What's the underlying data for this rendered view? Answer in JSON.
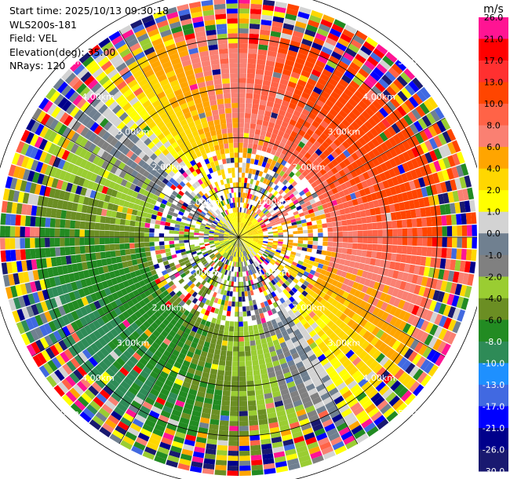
{
  "info": {
    "start_time": "Start time: 2025/10/13 09:30:18",
    "instrument": "WLS200s-181",
    "field": "Field: VEL",
    "elevation": "Elevation(deg): 35.00",
    "nrays": "NRays: 120"
  },
  "colorbar": {
    "unit": "m/s",
    "ticks": [
      "26.0",
      "21.0",
      "17.0",
      "13.0",
      "10.0",
      "8.0",
      "6.0",
      "4.0",
      "2.0",
      "1.0",
      "0.0",
      "-1.0",
      "-2.0",
      "-4.0",
      "-6.0",
      "-8.0",
      "-10.0",
      "-13.0",
      "-17.0",
      "-21.0",
      "-26.0",
      "-30.0"
    ],
    "colors": [
      "#ff1493",
      "#ff0000",
      "#ff3030",
      "#ff4500",
      "#ff6347",
      "#fa8072",
      "#ffa500",
      "#ffd700",
      "#ffff00",
      "#d3d3d3",
      "#708090",
      "#808080",
      "#9acd32",
      "#6b8e23",
      "#228b22",
      "#2e8b57",
      "#1e90ff",
      "#4169e1",
      "#0000ff",
      "#00008b",
      "#191970"
    ]
  },
  "range_labels": [
    "1.00km",
    "2.00km",
    "3.00km",
    "4.00km",
    "5.00km"
  ],
  "chart_data": {
    "type": "ppi",
    "field": "VEL",
    "nrays": 120,
    "elevation_deg": 35.0,
    "range_rings_km": [
      1.0,
      2.0,
      3.0,
      4.0,
      5.0
    ],
    "vmin": -30.0,
    "vmax": 26.0
  }
}
